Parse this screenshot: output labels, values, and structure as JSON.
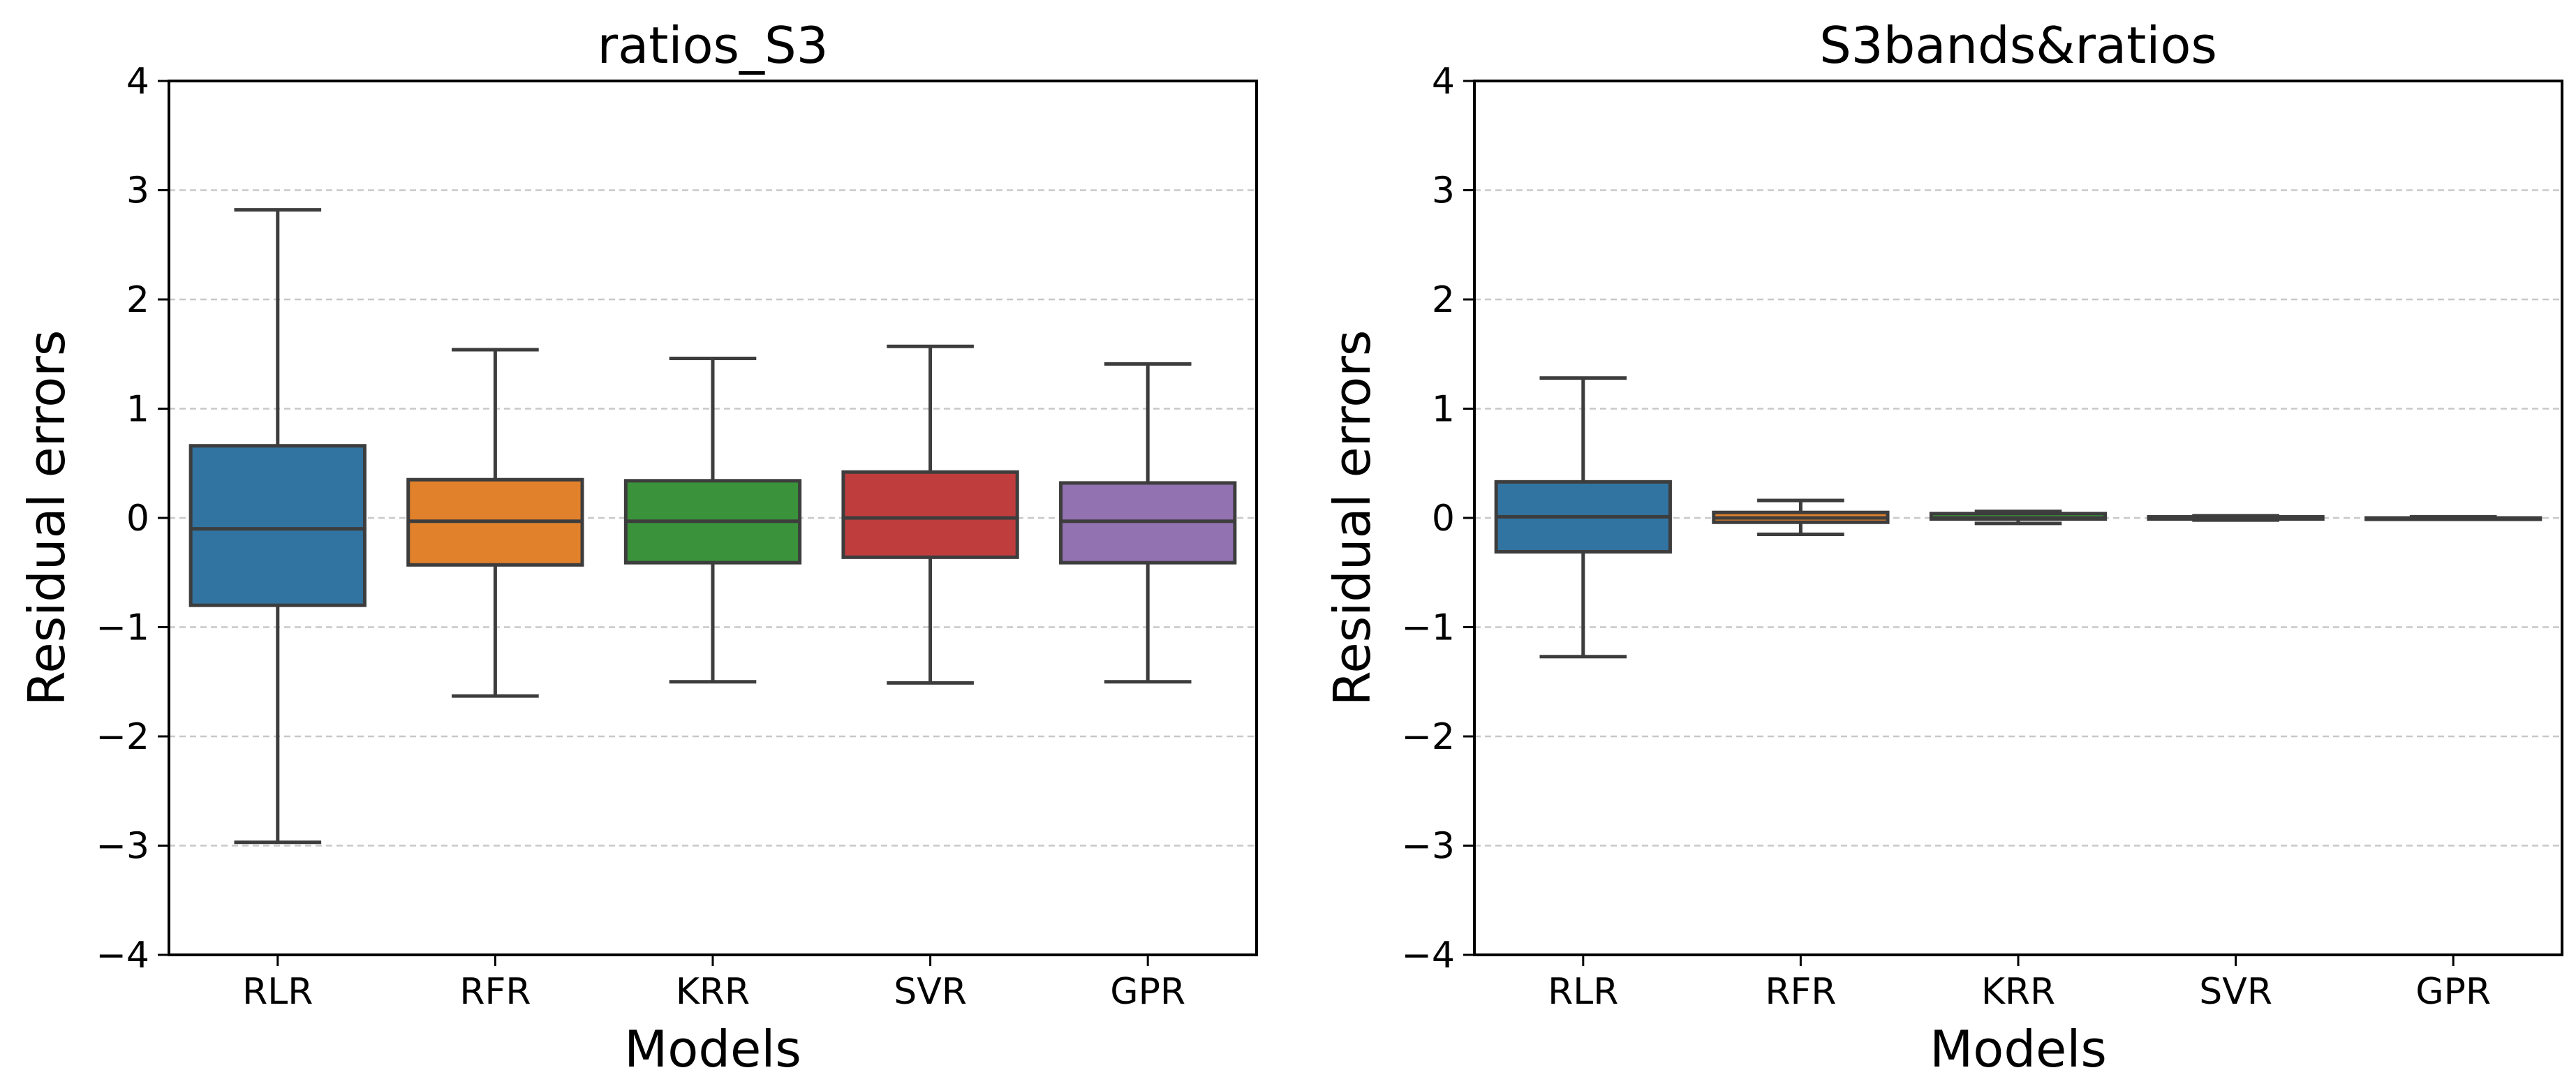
{
  "chart_data": [
    {
      "type": "box",
      "title": "ratios_S3",
      "xlabel": "Models",
      "ylabel": "Residual errors",
      "ylim": [
        -4,
        4
      ],
      "yticks": [
        4,
        3,
        2,
        1,
        0,
        -1,
        -2,
        -3,
        -4
      ],
      "ytick_labels": [
        "4",
        "3",
        "2",
        "1",
        "0",
        "−1",
        "−2",
        "−3",
        "−4"
      ],
      "grid": "horizontal dashed",
      "categories": [
        "RLR",
        "RFR",
        "KRR",
        "SVR",
        "GPR"
      ],
      "boxes": [
        {
          "name": "RLR",
          "color": "#3274a1",
          "whisker_low": -2.97,
          "q1": -0.8,
          "median": -0.1,
          "q3": 0.66,
          "whisker_high": 2.82
        },
        {
          "name": "RFR",
          "color": "#e1812c",
          "whisker_low": -1.63,
          "q1": -0.43,
          "median": -0.03,
          "q3": 0.35,
          "whisker_high": 1.54
        },
        {
          "name": "KRR",
          "color": "#3a923a",
          "whisker_low": -1.5,
          "q1": -0.41,
          "median": -0.03,
          "q3": 0.34,
          "whisker_high": 1.46
        },
        {
          "name": "SVR",
          "color": "#c03d3e",
          "whisker_low": -1.51,
          "q1": -0.36,
          "median": 0.0,
          "q3": 0.42,
          "whisker_high": 1.57
        },
        {
          "name": "GPR",
          "color": "#9372b2",
          "whisker_low": -1.5,
          "q1": -0.41,
          "median": -0.03,
          "q3": 0.32,
          "whisker_high": 1.41
        }
      ]
    },
    {
      "type": "box",
      "title": "S3bands&ratios",
      "xlabel": "Models",
      "ylabel": "Residual errors",
      "ylim": [
        -4,
        4
      ],
      "yticks": [
        4,
        3,
        2,
        1,
        0,
        -1,
        -2,
        -3,
        -4
      ],
      "ytick_labels": [
        "4",
        "3",
        "2",
        "1",
        "0",
        "−1",
        "−2",
        "−3",
        "−4"
      ],
      "grid": "horizontal dashed",
      "categories": [
        "RLR",
        "RFR",
        "KRR",
        "SVR",
        "GPR"
      ],
      "boxes": [
        {
          "name": "RLR",
          "color": "#3274a1",
          "whisker_low": -1.27,
          "q1": -0.31,
          "median": 0.01,
          "q3": 0.33,
          "whisker_high": 1.28
        },
        {
          "name": "RFR",
          "color": "#e1812c",
          "whisker_low": -0.15,
          "q1": -0.04,
          "median": 0.0,
          "q3": 0.05,
          "whisker_high": 0.16
        },
        {
          "name": "KRR",
          "color": "#3a923a",
          "whisker_low": -0.05,
          "q1": -0.01,
          "median": 0.0,
          "q3": 0.04,
          "whisker_high": 0.06
        },
        {
          "name": "SVR",
          "color": "#c03d3e",
          "whisker_low": -0.02,
          "q1": -0.01,
          "median": 0.0,
          "q3": 0.01,
          "whisker_high": 0.02
        },
        {
          "name": "GPR",
          "color": "#9372b2",
          "whisker_low": -0.01,
          "q1": 0.0,
          "median": 0.0,
          "q3": 0.0,
          "whisker_high": 0.01
        }
      ]
    }
  ]
}
